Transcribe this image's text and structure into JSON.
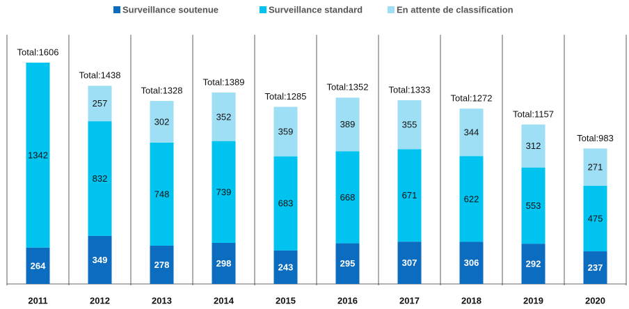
{
  "chart_data": {
    "type": "stacked_bar",
    "categories": [
      "2011",
      "2012",
      "2013",
      "2014",
      "2015",
      "2016",
      "2017",
      "2018",
      "2019",
      "2020"
    ],
    "series": [
      {
        "name": "Surveillance soutenue",
        "color": "#0b6cc0",
        "values": [
          264,
          349,
          278,
          298,
          243,
          295,
          307,
          306,
          292,
          237
        ]
      },
      {
        "name": "Surveillance standard",
        "color": "#00c3ef",
        "values": [
          1342,
          832,
          748,
          739,
          683,
          668,
          671,
          622,
          553,
          475
        ]
      },
      {
        "name": "En attente de classification",
        "color": "#9edff6",
        "values": [
          null,
          257,
          302,
          352,
          359,
          389,
          355,
          344,
          312,
          271
        ]
      }
    ],
    "totals": {
      "values": [
        1606,
        1438,
        1328,
        1389,
        1285,
        1352,
        1333,
        1272,
        1157,
        983
      ],
      "value_labels": [
        "Total:1606",
        "Total:1438",
        "Total:1328",
        "Total:1389",
        "Total:1285",
        "Total:1352",
        "Total:1333",
        "Total:1272",
        "Total:1157",
        "Total:983"
      ]
    },
    "legend": "top"
  }
}
